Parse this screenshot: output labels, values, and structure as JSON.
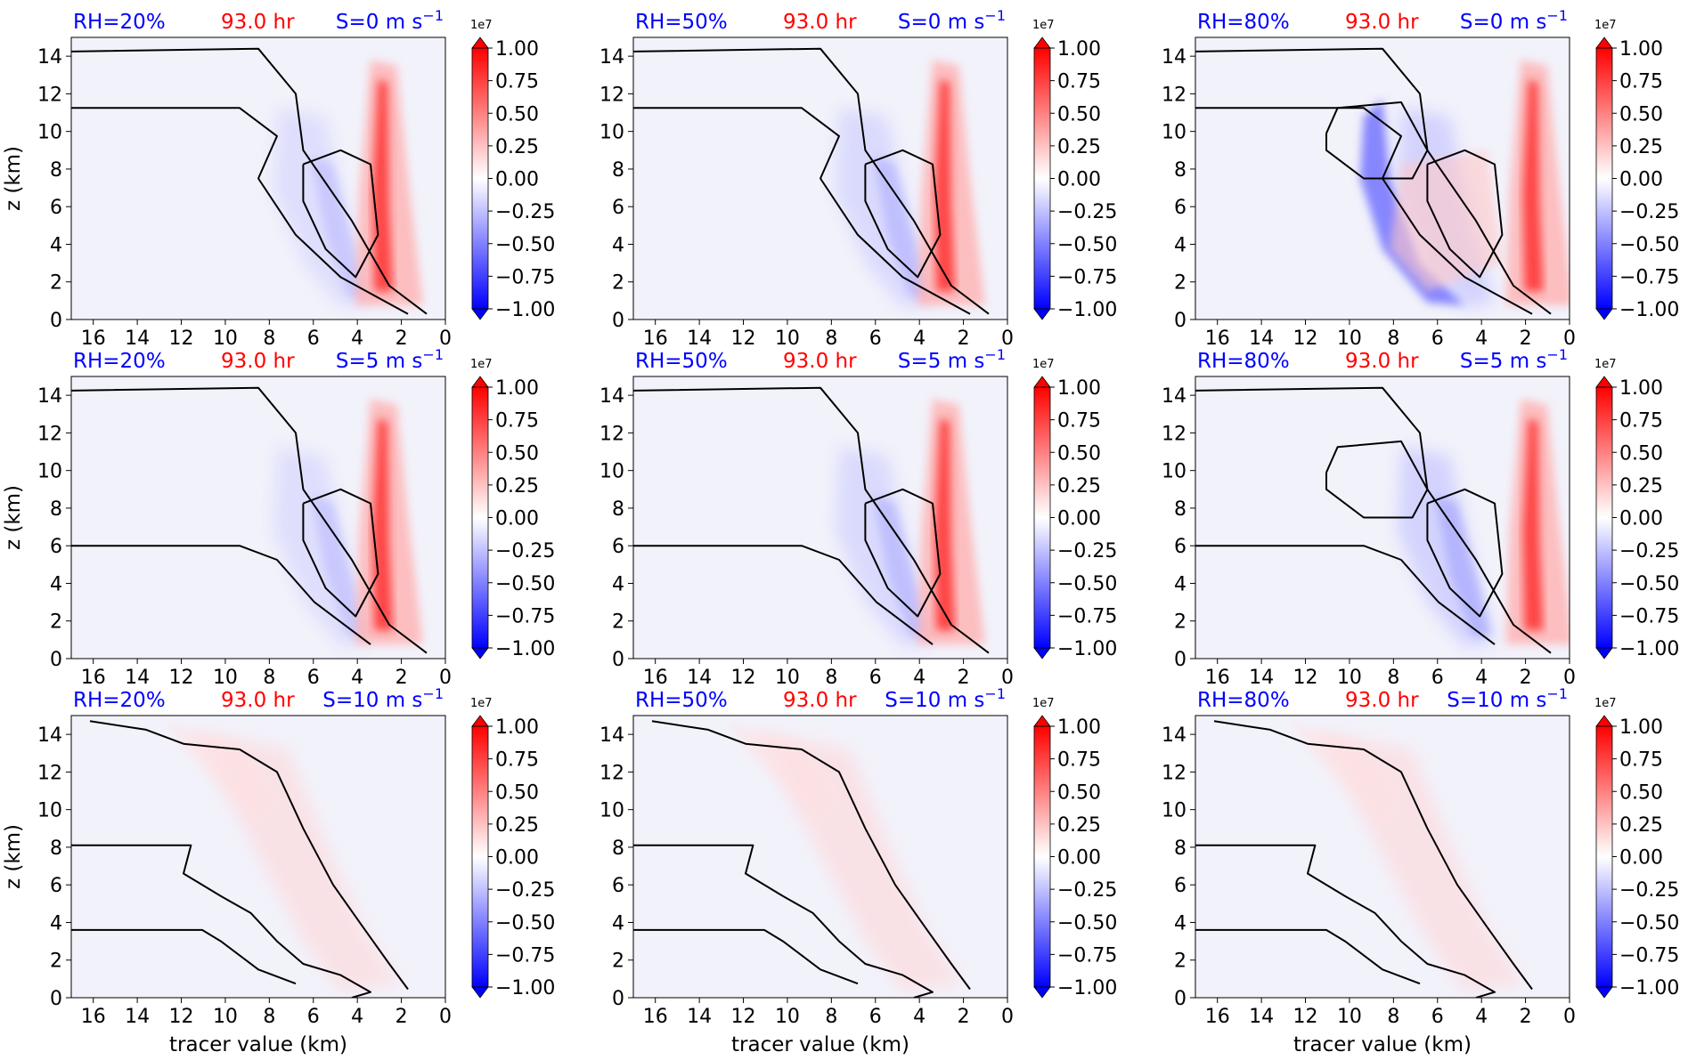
{
  "figure": {
    "shared": {
      "x_axis_label": "tracer value (km)",
      "y_axis_label": "z (km)",
      "time_label": "93.0 hr",
      "colorbar_exponent": "1e7",
      "x_ticks": [
        "16",
        "14",
        "12",
        "10",
        "8",
        "6",
        "4",
        "2",
        "0"
      ],
      "y_ticks": [
        "0",
        "2",
        "4",
        "6",
        "8",
        "10",
        "12",
        "14"
      ],
      "colorbar_ticks": [
        "1.00",
        "0.75",
        "0.50",
        "0.25",
        "0.00",
        "−0.25",
        "−0.50",
        "−0.75",
        "−1.00"
      ]
    },
    "colors": {
      "rh_label": "#0000ff",
      "time_label": "#ff0000",
      "shear_label": "#0000ff",
      "positive": "#ff0000",
      "negative": "#0000ff",
      "background_field": "#f2f2fb",
      "contour": "#000000"
    }
  },
  "chart_data": [
    {
      "type": "heatmap",
      "rh": "RH=20%",
      "time": "93.0 hr",
      "shear": "S=0 m s",
      "shear_exp": "−1",
      "xlim": [
        17,
        0
      ],
      "ylim": [
        0,
        15
      ],
      "clim": [
        -1.0,
        1.0
      ]
    },
    {
      "type": "heatmap",
      "rh": "RH=50%",
      "time": "93.0 hr",
      "shear": "S=0 m s",
      "shear_exp": "−1",
      "xlim": [
        17,
        0
      ],
      "ylim": [
        0,
        15
      ],
      "clim": [
        -1.0,
        1.0
      ]
    },
    {
      "type": "heatmap",
      "rh": "RH=80%",
      "time": "93.0 hr",
      "shear": "S=0 m s",
      "shear_exp": "−1",
      "xlim": [
        17,
        0
      ],
      "ylim": [
        0,
        15
      ],
      "clim": [
        -1.0,
        1.0
      ]
    },
    {
      "type": "heatmap",
      "rh": "RH=20%",
      "time": "93.0 hr",
      "shear": "S=5 m s",
      "shear_exp": "−1",
      "xlim": [
        17,
        0
      ],
      "ylim": [
        0,
        15
      ],
      "clim": [
        -1.0,
        1.0
      ]
    },
    {
      "type": "heatmap",
      "rh": "RH=50%",
      "time": "93.0 hr",
      "shear": "S=5 m s",
      "shear_exp": "−1",
      "xlim": [
        17,
        0
      ],
      "ylim": [
        0,
        15
      ],
      "clim": [
        -1.0,
        1.0
      ]
    },
    {
      "type": "heatmap",
      "rh": "RH=80%",
      "time": "93.0 hr",
      "shear": "S=5 m s",
      "shear_exp": "−1",
      "xlim": [
        17,
        0
      ],
      "ylim": [
        0,
        15
      ],
      "clim": [
        -1.0,
        1.0
      ]
    },
    {
      "type": "heatmap",
      "rh": "RH=20%",
      "time": "93.0 hr",
      "shear": "S=10 m s",
      "shear_exp": "−1",
      "xlim": [
        17,
        0
      ],
      "ylim": [
        0,
        15
      ],
      "clim": [
        -1.0,
        1.0
      ]
    },
    {
      "type": "heatmap",
      "rh": "RH=50%",
      "time": "93.0 hr",
      "shear": "S=10 m s",
      "shear_exp": "−1",
      "xlim": [
        17,
        0
      ],
      "ylim": [
        0,
        15
      ],
      "clim": [
        -1.0,
        1.0
      ]
    },
    {
      "type": "heatmap",
      "rh": "RH=80%",
      "time": "93.0 hr",
      "shear": "S=10 m s",
      "shear_exp": "−1",
      "xlim": [
        17,
        0
      ],
      "ylim": [
        0,
        15
      ],
      "clim": [
        -1.0,
        1.0
      ]
    }
  ]
}
